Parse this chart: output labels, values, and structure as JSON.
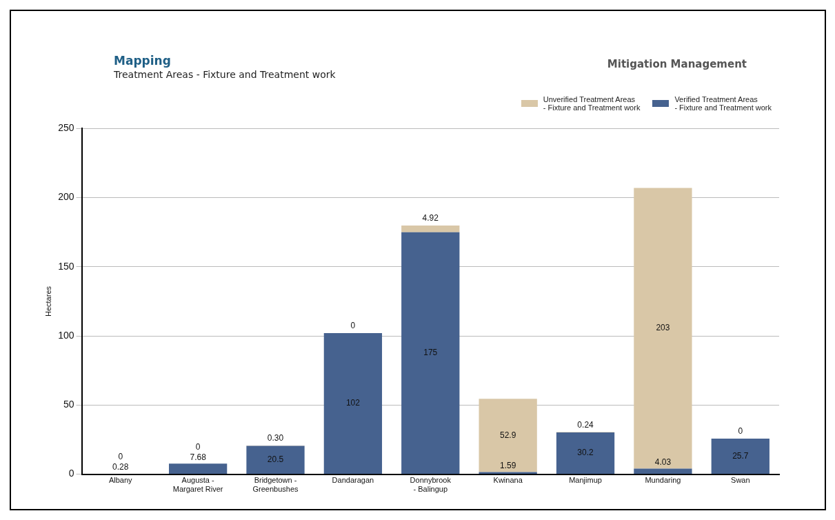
{
  "chart_data": {
    "type": "bar",
    "title": "Mapping",
    "subtitle": "Treatment Areas - Fixture and Treatment work",
    "annotations": [
      "Mitigation Management"
    ],
    "ylabel": "Hectares",
    "categories": [
      "Albany",
      "Augusta -\nMargaret River",
      "Bridgetown -\nGreenbushes",
      "Dandaragan",
      "Donnybrook\n- Balingup",
      "Kwinana",
      "Manjimup",
      "Mundaring",
      "Swan"
    ],
    "stacked": true,
    "ylim": [
      0,
      250
    ],
    "yticks": [
      0,
      50,
      100,
      150,
      200,
      250
    ],
    "grid": "y",
    "legend": "top right",
    "series": [
      {
        "name": "Verified Treatment Areas\n- Fixture and Treatment work",
        "color": "#46628f",
        "values": [
          0.28,
          7.68,
          20.5,
          102,
          175,
          1.59,
          30.2,
          4.03,
          25.7
        ],
        "value_labels": [
          "0.28",
          "7.68",
          "20.5",
          "102",
          "175",
          "1.59",
          "30.2",
          "4.03",
          "25.7"
        ]
      },
      {
        "name": "Unverified Treatment Areas\n- Fixture and Treatment work",
        "color": "#d9c7a7",
        "values": [
          0,
          0,
          0.3,
          0,
          4.92,
          52.9,
          0.24,
          203,
          0
        ],
        "value_labels": [
          "0",
          "0",
          "0.30",
          "0",
          "4.92",
          "52.9",
          "0.24",
          "203",
          "0"
        ]
      }
    ]
  }
}
